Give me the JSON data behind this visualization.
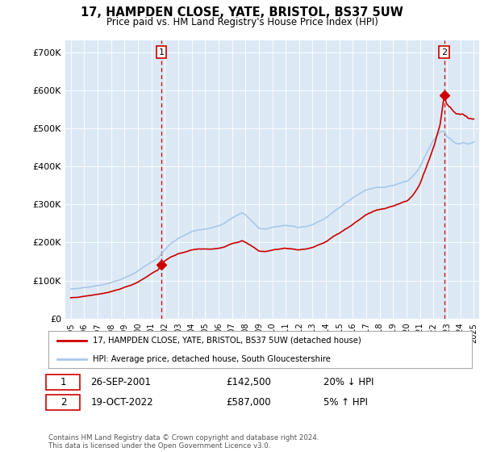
{
  "title": "17, HAMPDEN CLOSE, YATE, BRISTOL, BS37 5UW",
  "subtitle": "Price paid vs. HM Land Registry's House Price Index (HPI)",
  "ylabel_ticks": [
    "£0",
    "£100K",
    "£200K",
    "£300K",
    "£400K",
    "£500K",
    "£600K",
    "£700K"
  ],
  "ytick_values": [
    0,
    100000,
    200000,
    300000,
    400000,
    500000,
    600000,
    700000
  ],
  "ylim": [
    0,
    730000
  ],
  "plot_bg": "#dce9f5",
  "red_color": "#cc0000",
  "blue_color": "#a8c8e8",
  "legend1": "17, HAMPDEN CLOSE, YATE, BRISTOL, BS37 5UW (detached house)",
  "legend2": "HPI: Average price, detached house, South Gloucestershire",
  "marker1_date": "26-SEP-2001",
  "marker1_price": "£142,500",
  "marker1_pct": "20% ↓ HPI",
  "marker2_date": "19-OCT-2022",
  "marker2_price": "£587,000",
  "marker2_pct": "5% ↑ HPI",
  "footer": "Contains HM Land Registry data © Crown copyright and database right 2024.\nThis data is licensed under the Open Government Licence v3.0.",
  "marker1_x": 2001.75,
  "marker1_y": 142500,
  "marker2_x": 2022.79,
  "marker2_y": 587000,
  "xtick_years": [
    1995,
    1996,
    1997,
    1998,
    1999,
    2000,
    2001,
    2002,
    2003,
    2004,
    2005,
    2006,
    2007,
    2008,
    2009,
    2010,
    2011,
    2012,
    2013,
    2014,
    2015,
    2016,
    2017,
    2018,
    2019,
    2020,
    2021,
    2022,
    2023,
    2024,
    2025
  ]
}
